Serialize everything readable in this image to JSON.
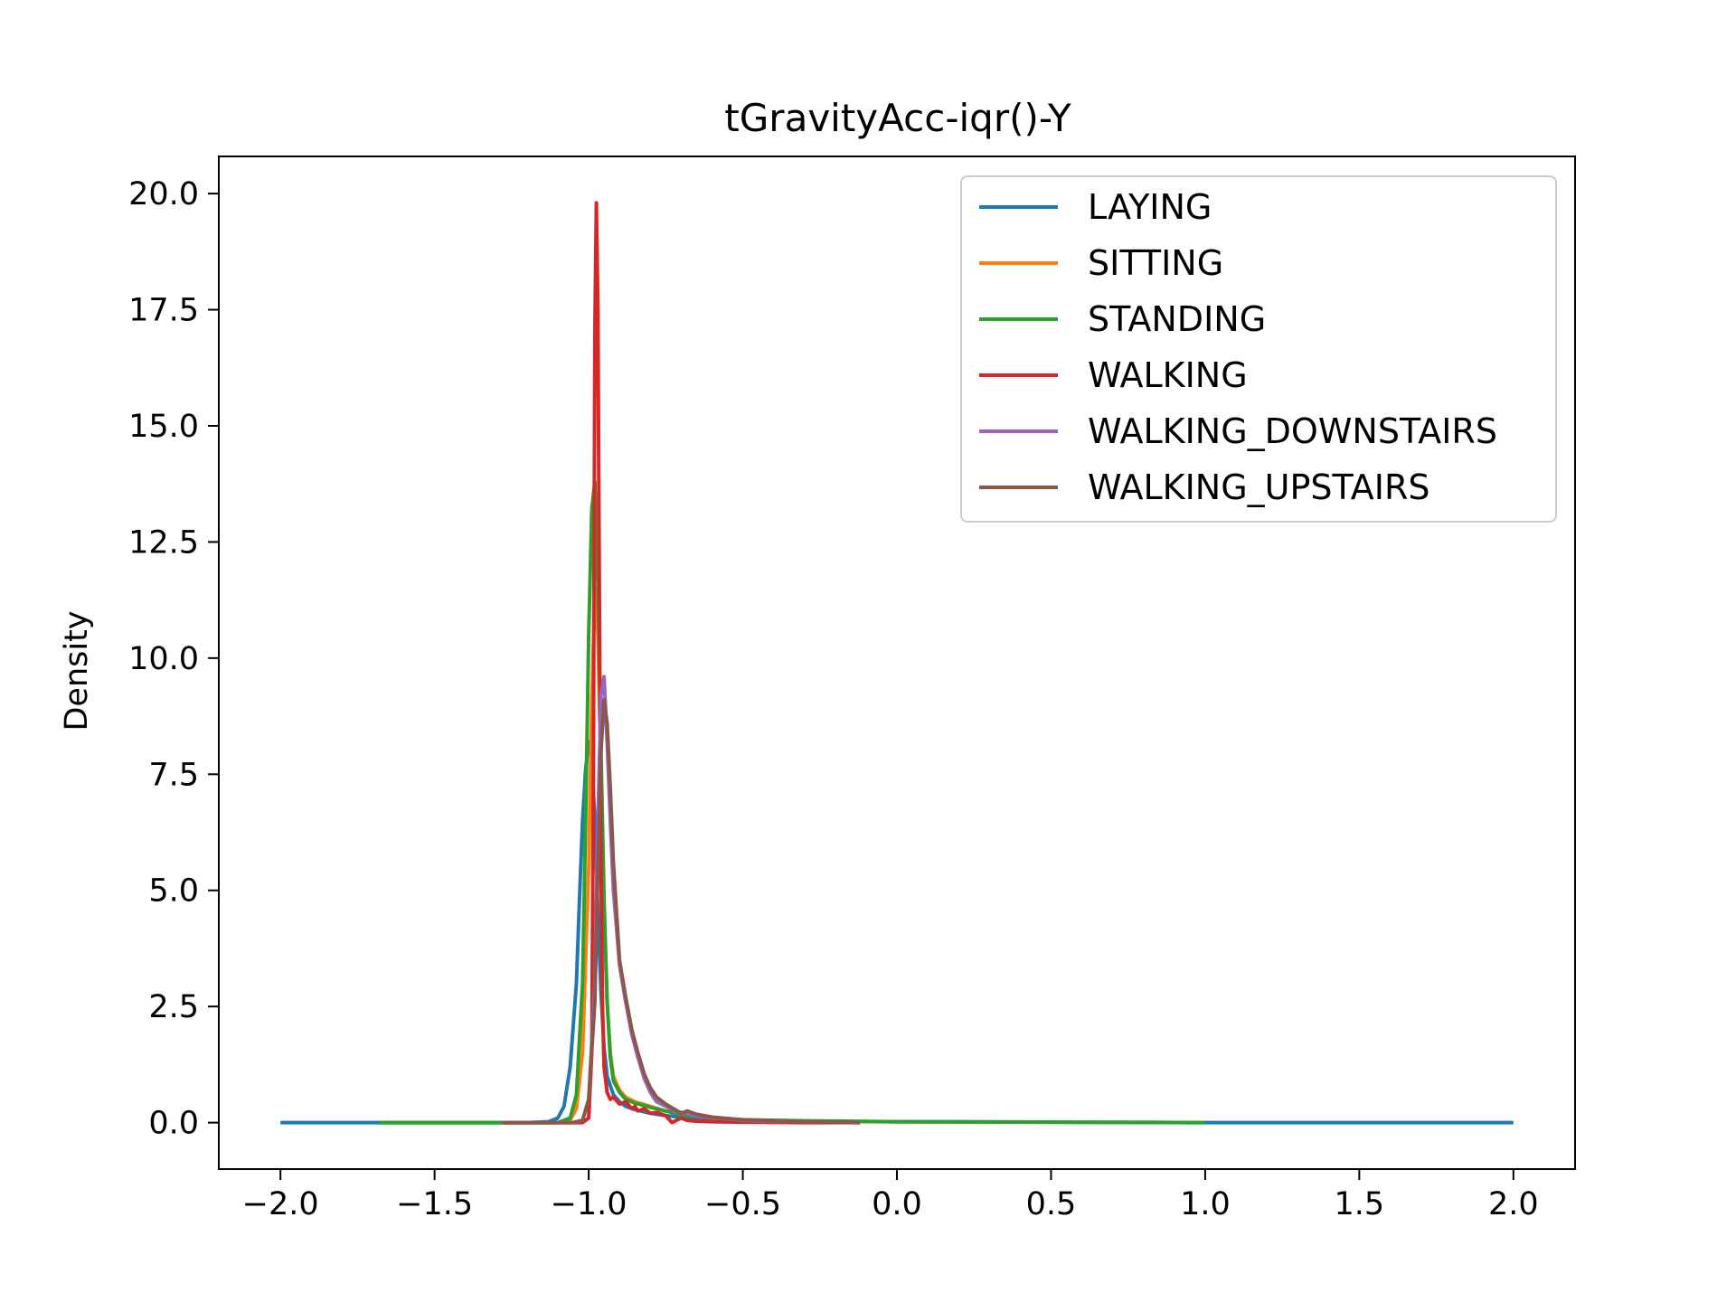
{
  "chart_data": {
    "type": "line",
    "title": "tGravityAcc-iqr()-Y",
    "xlabel": "",
    "ylabel": "Density",
    "xlim": [
      -2.2,
      2.2
    ],
    "ylim": [
      -1.0,
      20.8
    ],
    "xticks": [
      -2.0,
      -1.5,
      -1.0,
      -0.5,
      0.0,
      0.5,
      1.0,
      1.5,
      2.0
    ],
    "xtick_labels": [
      "−2.0",
      "−1.5",
      "−1.0",
      "−0.5",
      "0.0",
      "0.5",
      "1.0",
      "1.5",
      "2.0"
    ],
    "yticks": [
      0.0,
      2.5,
      5.0,
      7.5,
      10.0,
      12.5,
      15.0,
      17.5,
      20.0
    ],
    "ytick_labels": [
      "0.0",
      "2.5",
      "5.0",
      "7.5",
      "10.0",
      "12.5",
      "15.0",
      "17.5",
      "20.0"
    ],
    "grid": false,
    "legend_position": "top-right",
    "series": [
      {
        "name": "LAYING",
        "color": "#1f77b4",
        "x": [
          -2.0,
          -1.5,
          -1.2,
          -1.13,
          -1.1,
          -1.08,
          -1.06,
          -1.04,
          -1.03,
          -1.02,
          -1.01,
          -1.0,
          -0.99,
          -0.98,
          -0.97,
          -0.96,
          -0.95,
          -0.94,
          -0.92,
          -0.9,
          -0.88,
          -0.85,
          -0.8,
          -0.75,
          -0.7,
          -0.6,
          -0.5,
          -0.3,
          0.0,
          0.5,
          1.0,
          1.5,
          2.0
        ],
        "y": [
          0.0,
          0.0,
          0.0,
          0.02,
          0.1,
          0.35,
          1.2,
          3.0,
          4.8,
          6.5,
          7.6,
          8.2,
          7.8,
          6.5,
          4.5,
          2.8,
          1.6,
          1.0,
          0.6,
          0.45,
          0.35,
          0.28,
          0.2,
          0.15,
          0.12,
          0.08,
          0.05,
          0.03,
          0.02,
          0.01,
          0.0,
          0.0,
          0.0
        ]
      },
      {
        "name": "SITTING",
        "color": "#ff7f0e",
        "x": [
          -1.3,
          -1.1,
          -1.06,
          -1.04,
          -1.02,
          -1.0,
          -0.99,
          -0.98,
          -0.97,
          -0.96,
          -0.95,
          -0.94,
          -0.93,
          -0.92,
          -0.9,
          -0.88,
          -0.85,
          -0.8,
          -0.75,
          -0.7,
          -0.6,
          -0.5,
          -0.3,
          0.0,
          0.3
        ],
        "y": [
          0.0,
          0.0,
          0.05,
          0.3,
          1.5,
          5.5,
          9.0,
          11.5,
          10.5,
          7.5,
          4.5,
          2.6,
          1.5,
          1.0,
          0.7,
          0.55,
          0.45,
          0.35,
          0.25,
          0.18,
          0.1,
          0.06,
          0.03,
          0.02,
          0.01
        ]
      },
      {
        "name": "STANDING",
        "color": "#2ca02c",
        "x": [
          -1.68,
          -1.3,
          -1.1,
          -1.06,
          -1.04,
          -1.02,
          -1.01,
          -1.0,
          -0.99,
          -0.98,
          -0.97,
          -0.96,
          -0.95,
          -0.94,
          -0.93,
          -0.92,
          -0.9,
          -0.88,
          -0.85,
          -0.8,
          -0.75,
          -0.7,
          -0.6,
          -0.5,
          -0.3,
          0.0,
          0.5,
          1.0
        ],
        "y": [
          0.0,
          0.0,
          0.0,
          0.1,
          0.6,
          3.0,
          6.5,
          10.5,
          13.2,
          13.8,
          11.5,
          8.0,
          4.8,
          2.6,
          1.4,
          0.9,
          0.65,
          0.5,
          0.42,
          0.33,
          0.25,
          0.18,
          0.1,
          0.06,
          0.04,
          0.02,
          0.01,
          0.0
        ]
      },
      {
        "name": "WALKING",
        "color": "#d62728",
        "x": [
          -1.28,
          -1.1,
          -1.02,
          -1.0,
          -0.99,
          -0.985,
          -0.98,
          -0.975,
          -0.97,
          -0.965,
          -0.96,
          -0.955,
          -0.95,
          -0.94,
          -0.93,
          -0.92,
          -0.9,
          -0.88,
          -0.86,
          -0.85,
          -0.84,
          -0.82,
          -0.8,
          -0.78,
          -0.75,
          -0.73,
          -0.7,
          -0.68,
          -0.65,
          -0.6,
          -0.5,
          -0.3,
          -0.12
        ],
        "y": [
          0.0,
          0.0,
          0.0,
          0.1,
          1.5,
          7.0,
          17.0,
          19.8,
          17.5,
          11.0,
          5.5,
          2.5,
          1.2,
          0.65,
          0.5,
          0.55,
          0.4,
          0.45,
          0.3,
          0.35,
          0.25,
          0.3,
          0.2,
          0.22,
          0.15,
          0.0,
          0.1,
          0.05,
          0.03,
          0.02,
          0.01,
          0.0,
          0.0
        ]
      },
      {
        "name": "WALKING_DOWNSTAIRS",
        "color": "#9467bd",
        "x": [
          -1.28,
          -1.05,
          -1.02,
          -1.0,
          -0.98,
          -0.97,
          -0.96,
          -0.95,
          -0.94,
          -0.93,
          -0.92,
          -0.9,
          -0.88,
          -0.86,
          -0.84,
          -0.82,
          -0.8,
          -0.78,
          -0.75,
          -0.72,
          -0.7,
          -0.68,
          -0.65,
          -0.6,
          -0.55,
          -0.5,
          -0.4,
          -0.3,
          -0.12
        ],
        "y": [
          0.0,
          0.0,
          0.05,
          0.5,
          3.0,
          6.5,
          9.2,
          9.6,
          8.2,
          6.5,
          5.0,
          3.4,
          2.6,
          1.9,
          1.4,
          0.95,
          0.65,
          0.45,
          0.35,
          0.25,
          0.22,
          0.2,
          0.15,
          0.1,
          0.08,
          0.05,
          0.03,
          0.02,
          0.0
        ]
      },
      {
        "name": "WALKING_UPSTAIRS",
        "color": "#8c564b",
        "x": [
          -1.28,
          -1.05,
          -1.02,
          -1.0,
          -0.98,
          -0.97,
          -0.96,
          -0.95,
          -0.94,
          -0.93,
          -0.92,
          -0.9,
          -0.88,
          -0.86,
          -0.84,
          -0.82,
          -0.8,
          -0.78,
          -0.75,
          -0.72,
          -0.7,
          -0.68,
          -0.65,
          -0.6,
          -0.55,
          -0.5,
          -0.4,
          -0.3,
          -0.12
        ],
        "y": [
          0.0,
          0.0,
          0.05,
          0.5,
          2.6,
          5.5,
          8.0,
          9.1,
          8.6,
          7.2,
          5.6,
          3.5,
          2.7,
          2.0,
          1.5,
          1.05,
          0.75,
          0.55,
          0.4,
          0.28,
          0.2,
          0.25,
          0.18,
          0.12,
          0.09,
          0.06,
          0.04,
          0.02,
          0.0
        ]
      }
    ]
  }
}
